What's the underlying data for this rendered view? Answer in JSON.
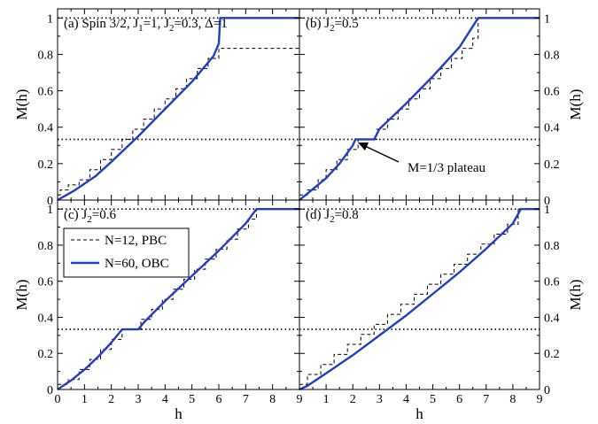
{
  "chart_data": {
    "type": "line",
    "xlabel": "h",
    "ylabel": "M(h)",
    "xlim": [
      0,
      9
    ],
    "ylim": [
      0,
      1.05
    ],
    "x_ticks": [
      0,
      1,
      2,
      3,
      4,
      5,
      6,
      7,
      8,
      9
    ],
    "y_ticks": [
      0,
      0.2,
      0.4,
      0.6,
      0.8,
      1
    ],
    "y_tick_labels": [
      "0",
      "0.2",
      "0.4",
      "0.6",
      "0.8",
      "1"
    ],
    "reference_lines": [
      1,
      0.3333
    ],
    "legend": {
      "position": "top-left (panel c)",
      "entries": [
        {
          "label": "N=12, PBC",
          "style": "dashed",
          "color": "#000000"
        },
        {
          "label": "N=60, OBC",
          "style": "solid",
          "color": "#1f3fbf"
        }
      ]
    },
    "panels": [
      {
        "id": "a",
        "title_prefix": "(a) Spin 3/2, J",
        "title_parts": [
          "(a) Spin 3/2, J",
          "1",
          "=1, J",
          "2",
          "=0.3, Δ=1"
        ],
        "series": [
          {
            "name": "N=60, OBC",
            "x": [
              0,
              0.6,
              1.0,
              1.4,
              2.0,
              3.0,
              4.0,
              5.0,
              5.8,
              6.0,
              6.05,
              9.0
            ],
            "y": [
              0,
              0.05,
              0.09,
              0.13,
              0.21,
              0.35,
              0.5,
              0.65,
              0.79,
              0.86,
              1.0,
              1.0
            ]
          },
          {
            "name": "N=12, PBC",
            "x": [
              0,
              0.1,
              0.4,
              0.8,
              1.2,
              1.6,
              2.0,
              2.4,
              2.8,
              3.2,
              3.6,
              4.0,
              4.4,
              4.8,
              5.2,
              5.6,
              6.0
            ],
            "y": [
              0.0278,
              0.0556,
              0.0833,
              0.1111,
              0.1667,
              0.2222,
              0.2778,
              0.3333,
              0.3889,
              0.4444,
              0.5,
              0.5556,
              0.6111,
              0.6667,
              0.7222,
              0.7778,
              0.8333
            ]
          }
        ]
      },
      {
        "id": "b",
        "title_parts": [
          "(b) J",
          "2",
          "=0.5"
        ],
        "annotation": "M=1/3 plateau",
        "series": [
          {
            "name": "N=60, OBC",
            "x": [
              0,
              0.5,
              1.0,
              1.5,
              2.0,
              2.1,
              2.8,
              3.0,
              4.0,
              5.0,
              6.0,
              6.7,
              9.0
            ],
            "y": [
              0,
              0.06,
              0.12,
              0.2,
              0.3,
              0.3333,
              0.3333,
              0.39,
              0.53,
              0.68,
              0.84,
              1.0,
              1.0
            ]
          },
          {
            "name": "N=12, PBC",
            "x": [
              0,
              0.3,
              0.7,
              1.0,
              1.4,
              1.8,
              2.2,
              2.9,
              3.3,
              3.7,
              4.1,
              4.5,
              4.9,
              5.3,
              5.7,
              6.1,
              6.5,
              6.7
            ],
            "y": [
              0.0278,
              0.0556,
              0.1111,
              0.1667,
              0.2222,
              0.2778,
              0.3333,
              0.3889,
              0.4444,
              0.5,
              0.5556,
              0.6111,
              0.6667,
              0.7222,
              0.7778,
              0.8333,
              0.8889,
              1.0
            ]
          }
        ]
      },
      {
        "id": "c",
        "title_parts": [
          "(c) J",
          "2",
          "=0.6"
        ],
        "series": [
          {
            "name": "N=60, OBC",
            "x": [
              0,
              0.5,
              1.0,
              1.5,
              2.0,
              2.4,
              3.0,
              3.2,
              4.0,
              5.0,
              6.0,
              7.0,
              7.4,
              9.0
            ],
            "y": [
              0,
              0.05,
              0.11,
              0.18,
              0.26,
              0.3333,
              0.3333,
              0.37,
              0.49,
              0.63,
              0.77,
              0.92,
              1.0,
              1.0
            ]
          },
          {
            "name": "N=12, PBC",
            "x": [
              0,
              0.4,
              0.8,
              1.2,
              1.6,
              2.0,
              2.4,
              3.1,
              3.5,
              3.9,
              4.3,
              4.7,
              5.1,
              5.5,
              5.9,
              6.3,
              6.7,
              7.1,
              7.4
            ],
            "y": [
              0.0278,
              0.0556,
              0.1111,
              0.1667,
              0.2222,
              0.2778,
              0.3333,
              0.3889,
              0.4444,
              0.5,
              0.5556,
              0.6111,
              0.6667,
              0.7222,
              0.7778,
              0.8333,
              0.8889,
              0.9444,
              1.0
            ]
          }
        ]
      },
      {
        "id": "d",
        "title_parts": [
          "(d) J",
          "2",
          "=0.8"
        ],
        "series": [
          {
            "name": "N=60, OBC",
            "x": [
              0,
              0.3,
              1.0,
              2.0,
              3.0,
              4.0,
              5.0,
              6.0,
              7.0,
              8.0,
              8.3,
              9.0
            ],
            "y": [
              0,
              0.02,
              0.09,
              0.19,
              0.3,
              0.41,
              0.53,
              0.65,
              0.78,
              0.92,
              1.0,
              1.0
            ]
          },
          {
            "name": "N=12, PBC",
            "x": [
              0,
              0.3,
              0.8,
              1.3,
              1.8,
              2.3,
              2.8,
              3.3,
              3.8,
              4.3,
              4.8,
              5.3,
              5.8,
              6.3,
              6.8,
              7.3,
              7.8,
              8.2
            ],
            "y": [
              0.0278,
              0.0833,
              0.1389,
              0.1944,
              0.25,
              0.3056,
              0.3611,
              0.4167,
              0.4722,
              0.5278,
              0.5833,
              0.6389,
              0.6944,
              0.75,
              0.8056,
              0.8611,
              0.9167,
              1.0
            ]
          }
        ]
      }
    ]
  }
}
